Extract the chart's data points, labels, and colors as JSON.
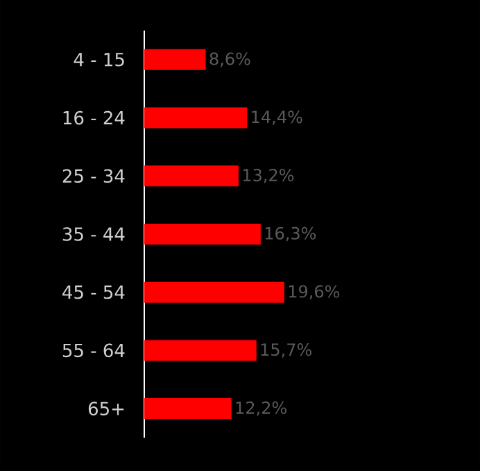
{
  "chart_data": {
    "type": "bar",
    "orientation": "horizontal",
    "categories": [
      "4 - 15",
      "16 - 24",
      "25 - 34",
      "35 - 44",
      "45 - 54",
      "55 - 64",
      "65+"
    ],
    "values": [
      8.6,
      14.4,
      13.2,
      16.3,
      19.6,
      15.7,
      12.2
    ],
    "value_labels": [
      "8,6%",
      "14,4%",
      "13,2%",
      "16,3%",
      "19,6%",
      "15,7%",
      "12,2%"
    ],
    "color": "#ff0000",
    "xlim": [
      0,
      47
    ],
    "tick_labels": "y"
  }
}
